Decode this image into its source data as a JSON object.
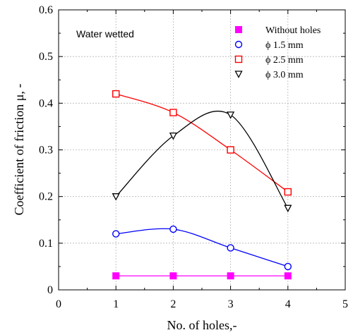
{
  "chart_data": {
    "type": "line",
    "title": "",
    "xlabel": "No. of holes,-",
    "ylabel": "Coefficient of friction μ, -",
    "xlim": [
      0,
      5
    ],
    "ylim": [
      0,
      0.6
    ],
    "x_ticks": [
      "0",
      "1",
      "2",
      "3",
      "4",
      "5"
    ],
    "y_ticks": [
      "0",
      "0.1",
      "0.2",
      "0.3",
      "0.4",
      "0.5",
      "0.6"
    ],
    "grid": true,
    "legend_position": "top-right",
    "annotation": "Water wetted",
    "series": [
      {
        "name": "Without holes",
        "marker": "filled-square",
        "color": "#ff00ff",
        "x": [
          1,
          2,
          3,
          4
        ],
        "y": [
          0.03,
          0.03,
          0.03,
          0.03
        ]
      },
      {
        "name": "ϕ 1.5 mm",
        "marker": "open-circle",
        "color": "#0000ff",
        "x": [
          1,
          2,
          3,
          4
        ],
        "y": [
          0.12,
          0.13,
          0.09,
          0.05
        ]
      },
      {
        "name": "ϕ 2.5 mm",
        "marker": "open-square",
        "color": "#ff0000",
        "x": [
          1,
          2,
          3,
          4
        ],
        "y": [
          0.42,
          0.38,
          0.3,
          0.21
        ]
      },
      {
        "name": "ϕ 3.0 mm",
        "marker": "open-triangle-down",
        "color": "#000000",
        "x": [
          1,
          2,
          3,
          4
        ],
        "y": [
          0.2,
          0.33,
          0.375,
          0.175
        ]
      }
    ]
  }
}
